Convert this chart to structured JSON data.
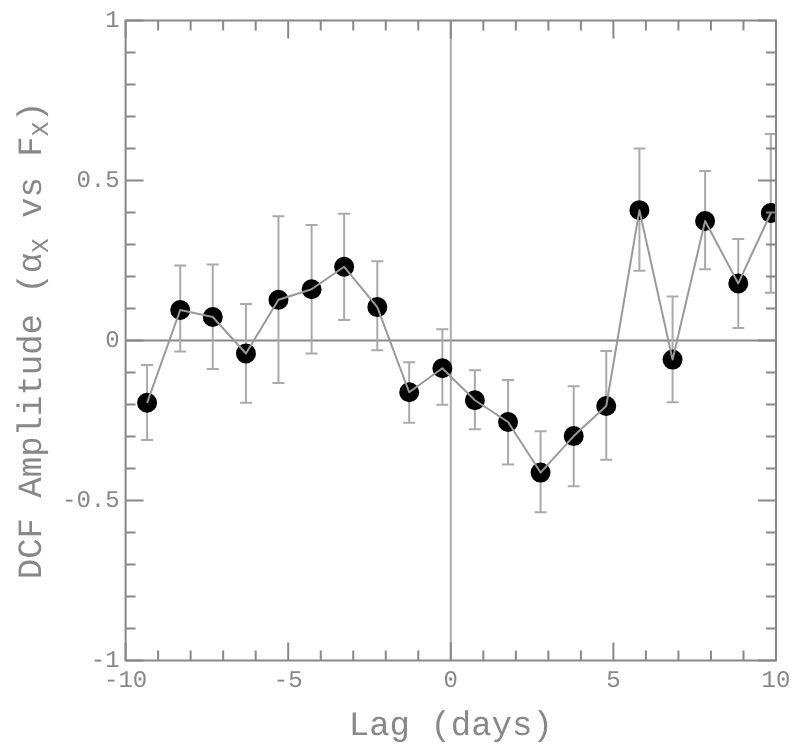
{
  "chart_data": {
    "type": "scatter",
    "xlabel": "Lag (days)",
    "ylabel": "DCF Amplitude (α$_{X}$ vs F$_{X}$)",
    "series": [
      {
        "type": "line",
        "color": "#999999",
        "marker": "none",
        "x": [
          -9.34,
          -8.32,
          -7.32,
          -6.3,
          -5.3,
          -4.28,
          -3.28,
          -2.26,
          -1.28,
          -0.26,
          0.74,
          1.76,
          2.76,
          3.78,
          4.78,
          5.8,
          6.82,
          7.82,
          8.84,
          9.84
        ],
        "values": [
          -0.195,
          0.095,
          0.073,
          -0.041,
          0.127,
          0.16,
          0.23,
          0.104,
          -0.162,
          -0.087,
          -0.187,
          -0.255,
          -0.413,
          -0.299,
          -0.205,
          0.407,
          -0.06,
          0.373,
          0.178,
          0.398
        ]
      },
      {
        "color": "#000000",
        "x": [
          -9.34,
          -8.32,
          -7.32,
          -6.3,
          -5.3,
          -4.28,
          -3.28,
          -2.26,
          -1.28,
          -0.26,
          0.74,
          1.76,
          2.76,
          3.78,
          4.78,
          5.8,
          6.82,
          7.82,
          8.84,
          9.84
        ],
        "values": [
          -0.195,
          0.095,
          0.073,
          -0.041,
          0.127,
          0.16,
          0.23,
          0.104,
          -0.162,
          -0.087,
          -0.187,
          -0.255,
          -0.413,
          -0.299,
          -0.205,
          0.407,
          -0.06,
          0.373,
          0.178,
          0.398
        ],
        "errors": [
          [
            -0.311,
            -0.077
          ],
          [
            -0.035,
            0.234
          ],
          [
            -0.089,
            0.237
          ],
          [
            -0.195,
            0.114
          ],
          [
            -0.133,
            0.388
          ],
          [
            -0.041,
            0.361
          ],
          [
            0.064,
            0.396
          ],
          [
            -0.031,
            0.247
          ],
          [
            -0.257,
            -0.068
          ],
          [
            -0.201,
            0.035
          ],
          [
            -0.278,
            -0.093
          ],
          [
            -0.388,
            -0.124
          ],
          [
            -0.537,
            -0.284
          ],
          [
            -0.456,
            -0.143
          ],
          [
            -0.373,
            -0.033
          ],
          [
            0.218,
            0.6
          ],
          [
            -0.193,
            0.137
          ],
          [
            0.222,
            0.529
          ],
          [
            0.039,
            0.317
          ],
          [
            0.149,
            0.645
          ]
        ]
      }
    ],
    "marker": "circle",
    "line_style": "solid",
    "xlim": [
      -10,
      10
    ],
    "ylim": [
      -1,
      1
    ],
    "xticks": [
      -10,
      {
        "value": -9,
        "label": null
      },
      {
        "value": -8,
        "label": null
      },
      {
        "value": -7,
        "label": null
      },
      {
        "value": -6,
        "label": null
      },
      -5,
      {
        "value": -4,
        "label": null
      },
      {
        "value": -3,
        "label": null
      },
      {
        "value": -2,
        "label": null
      },
      {
        "value": -1,
        "label": null
      },
      0,
      {
        "value": 1,
        "label": null
      },
      {
        "value": 2,
        "label": null
      },
      {
        "value": 3,
        "label": null
      },
      {
        "value": 4,
        "label": null
      },
      5,
      {
        "value": 6,
        "label": null
      },
      {
        "value": 7,
        "label": null
      },
      {
        "value": 8,
        "label": null
      },
      {
        "value": 9,
        "label": null
      },
      10
    ],
    "yticks": [
      -1,
      {
        "value": -0.9,
        "label": null
      },
      {
        "value": -0.8,
        "label": null
      },
      {
        "value": -0.7,
        "label": null
      },
      {
        "value": -0.6,
        "label": null
      },
      -0.5,
      {
        "value": -0.4,
        "label": null
      },
      {
        "value": -0.3,
        "label": null
      },
      {
        "value": -0.2,
        "label": null
      },
      {
        "value": -0.1,
        "label": null
      },
      0,
      {
        "value": 0.1,
        "label": null
      },
      {
        "value": 0.2,
        "label": null
      },
      {
        "value": 0.3,
        "label": null
      },
      {
        "value": 0.4,
        "label": null
      },
      0.5,
      {
        "value": 0.6,
        "label": null
      },
      {
        "value": 0.7,
        "label": null
      },
      {
        "value": 0.8,
        "label": null
      },
      {
        "value": 0.9,
        "label": null
      },
      1
    ],
    "ref_lines": [
      {
        "axis": "y",
        "value": 0,
        "color": "#888888"
      },
      {
        "axis": "x",
        "value": 0,
        "color": "#aaaaaa"
      }
    ],
    "grid": false,
    "legend": false
  }
}
